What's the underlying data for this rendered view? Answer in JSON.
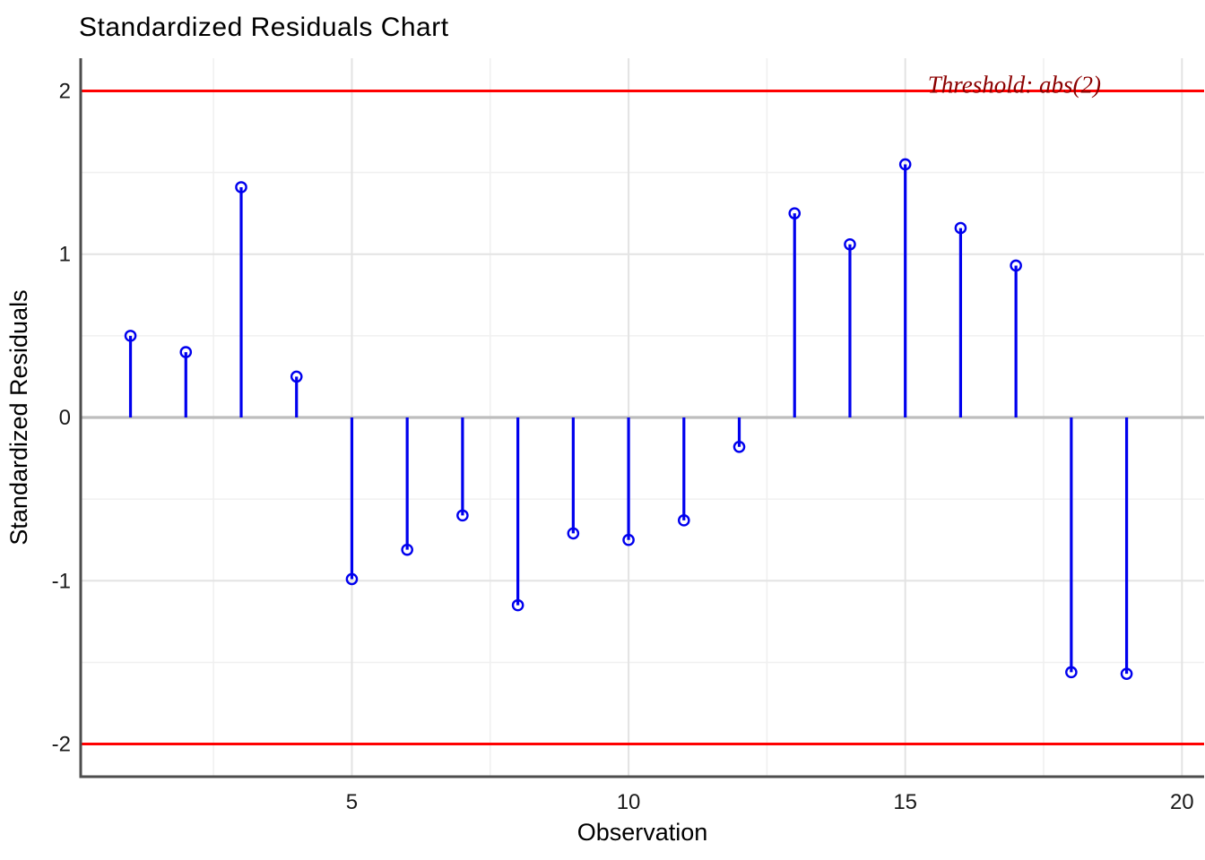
{
  "chart_data": {
    "type": "stem",
    "title": "Standardized Residuals Chart",
    "xlabel": "Observation",
    "ylabel": "Standardized Residuals",
    "x": [
      1,
      2,
      3,
      4,
      5,
      6,
      7,
      8,
      9,
      10,
      11,
      12,
      13,
      14,
      15,
      16,
      17,
      18,
      19
    ],
    "values": [
      0.5,
      0.4,
      1.41,
      0.25,
      -0.99,
      -0.81,
      -0.6,
      -1.15,
      -0.71,
      -0.75,
      -0.63,
      -0.18,
      1.25,
      1.06,
      1.55,
      1.16,
      0.93,
      -1.56,
      -1.57
    ],
    "baseline": 0,
    "threshold": {
      "label": "Threshold: abs(2)",
      "upper": 2,
      "lower": -2
    },
    "xlim": [
      0.1,
      20.4
    ],
    "ylim": [
      -2.2,
      2.2
    ],
    "x_ticks": [
      5,
      10,
      15,
      20
    ],
    "y_ticks": [
      -2,
      -1,
      0,
      1,
      2
    ],
    "x_minor": [
      2.5,
      7.5,
      12.5,
      17.5
    ],
    "y_minor": [
      -1.5,
      -0.5,
      0.5,
      1.5
    ],
    "grid": true,
    "legend": false,
    "colors": {
      "stem": "#0000ee",
      "marker_stroke": "#0000ee",
      "threshold_line": "#ff0000",
      "annotation_text": "#8b0000",
      "zero_line": "#bdbdbd",
      "axis_line": "#4d4d4d",
      "grid_major": "#e3e3e3",
      "grid_minor": "#f0f0f0",
      "background": "#ffffff"
    }
  }
}
